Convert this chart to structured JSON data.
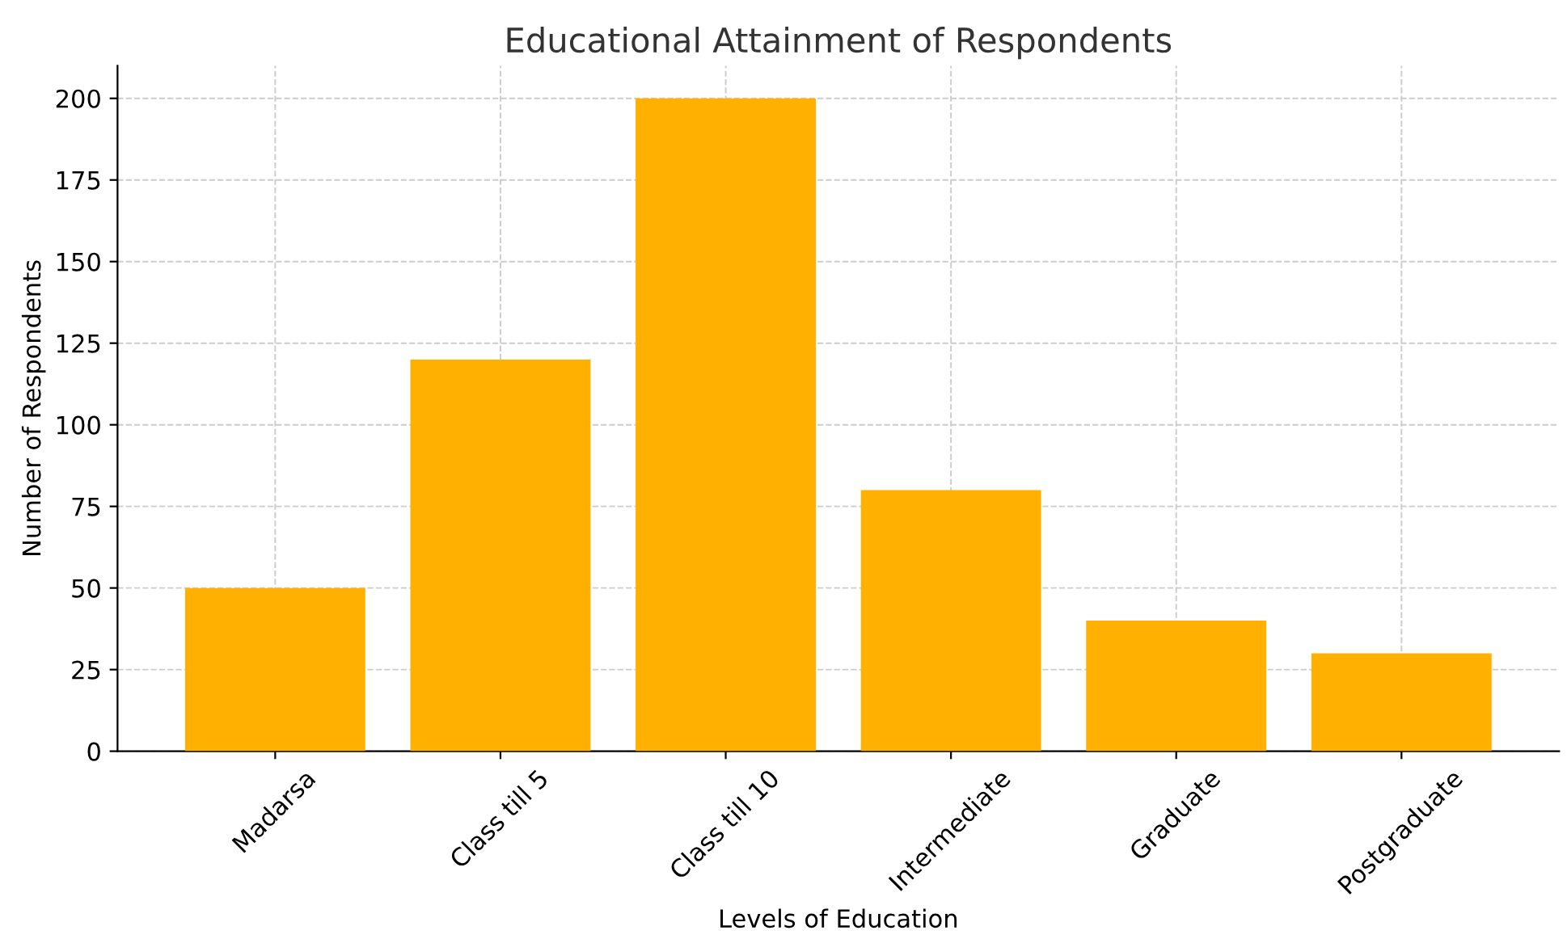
{
  "chart_data": {
    "type": "bar",
    "title": "Educational Attainment of Respondents",
    "xlabel": "Levels of Education",
    "ylabel": "Number of Respondents",
    "categories": [
      "Madarsa",
      "Class till 5",
      "Class till 10",
      "Intermediate",
      "Graduate",
      "Postgraduate"
    ],
    "values": [
      50,
      120,
      200,
      80,
      40,
      30
    ],
    "color": "#ffb000",
    "ylim": [
      0,
      210
    ],
    "yticks": [
      0,
      25,
      50,
      75,
      100,
      125,
      150,
      175,
      200
    ],
    "grid": true,
    "line_style": "dashed"
  }
}
